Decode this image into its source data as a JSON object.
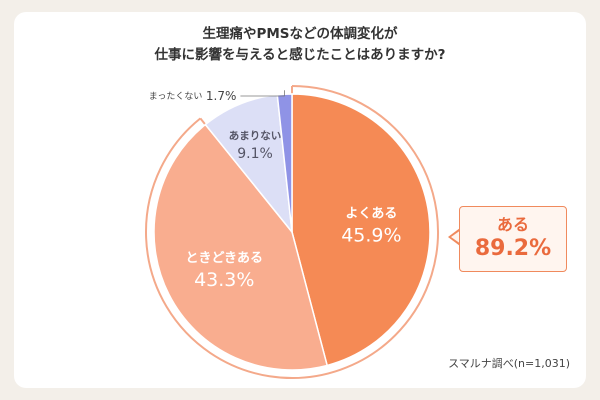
{
  "chart_data": {
    "type": "pie",
    "title_line1": "生理痛やPMSなどの体調変化が",
    "title_line2": "仕事に影響を与えると感じたことはありますか?",
    "slices": [
      {
        "label": "よくある",
        "value": 45.9,
        "value_text": "45.9%",
        "color": "#f58a55"
      },
      {
        "label": "ときどきある",
        "value": 43.3,
        "value_text": "43.3%",
        "color": "#f9ad8f"
      },
      {
        "label": "あまりない",
        "value": 9.1,
        "value_text": "9.1%",
        "color": "#dcdff6"
      },
      {
        "label": "まったくない",
        "value": 1.7,
        "value_text": "1.7%",
        "color": "#8f93e6"
      }
    ],
    "callout": {
      "label": "ある",
      "value": "89.2%"
    },
    "source": "スマルナ調べ(n=1,031)"
  }
}
